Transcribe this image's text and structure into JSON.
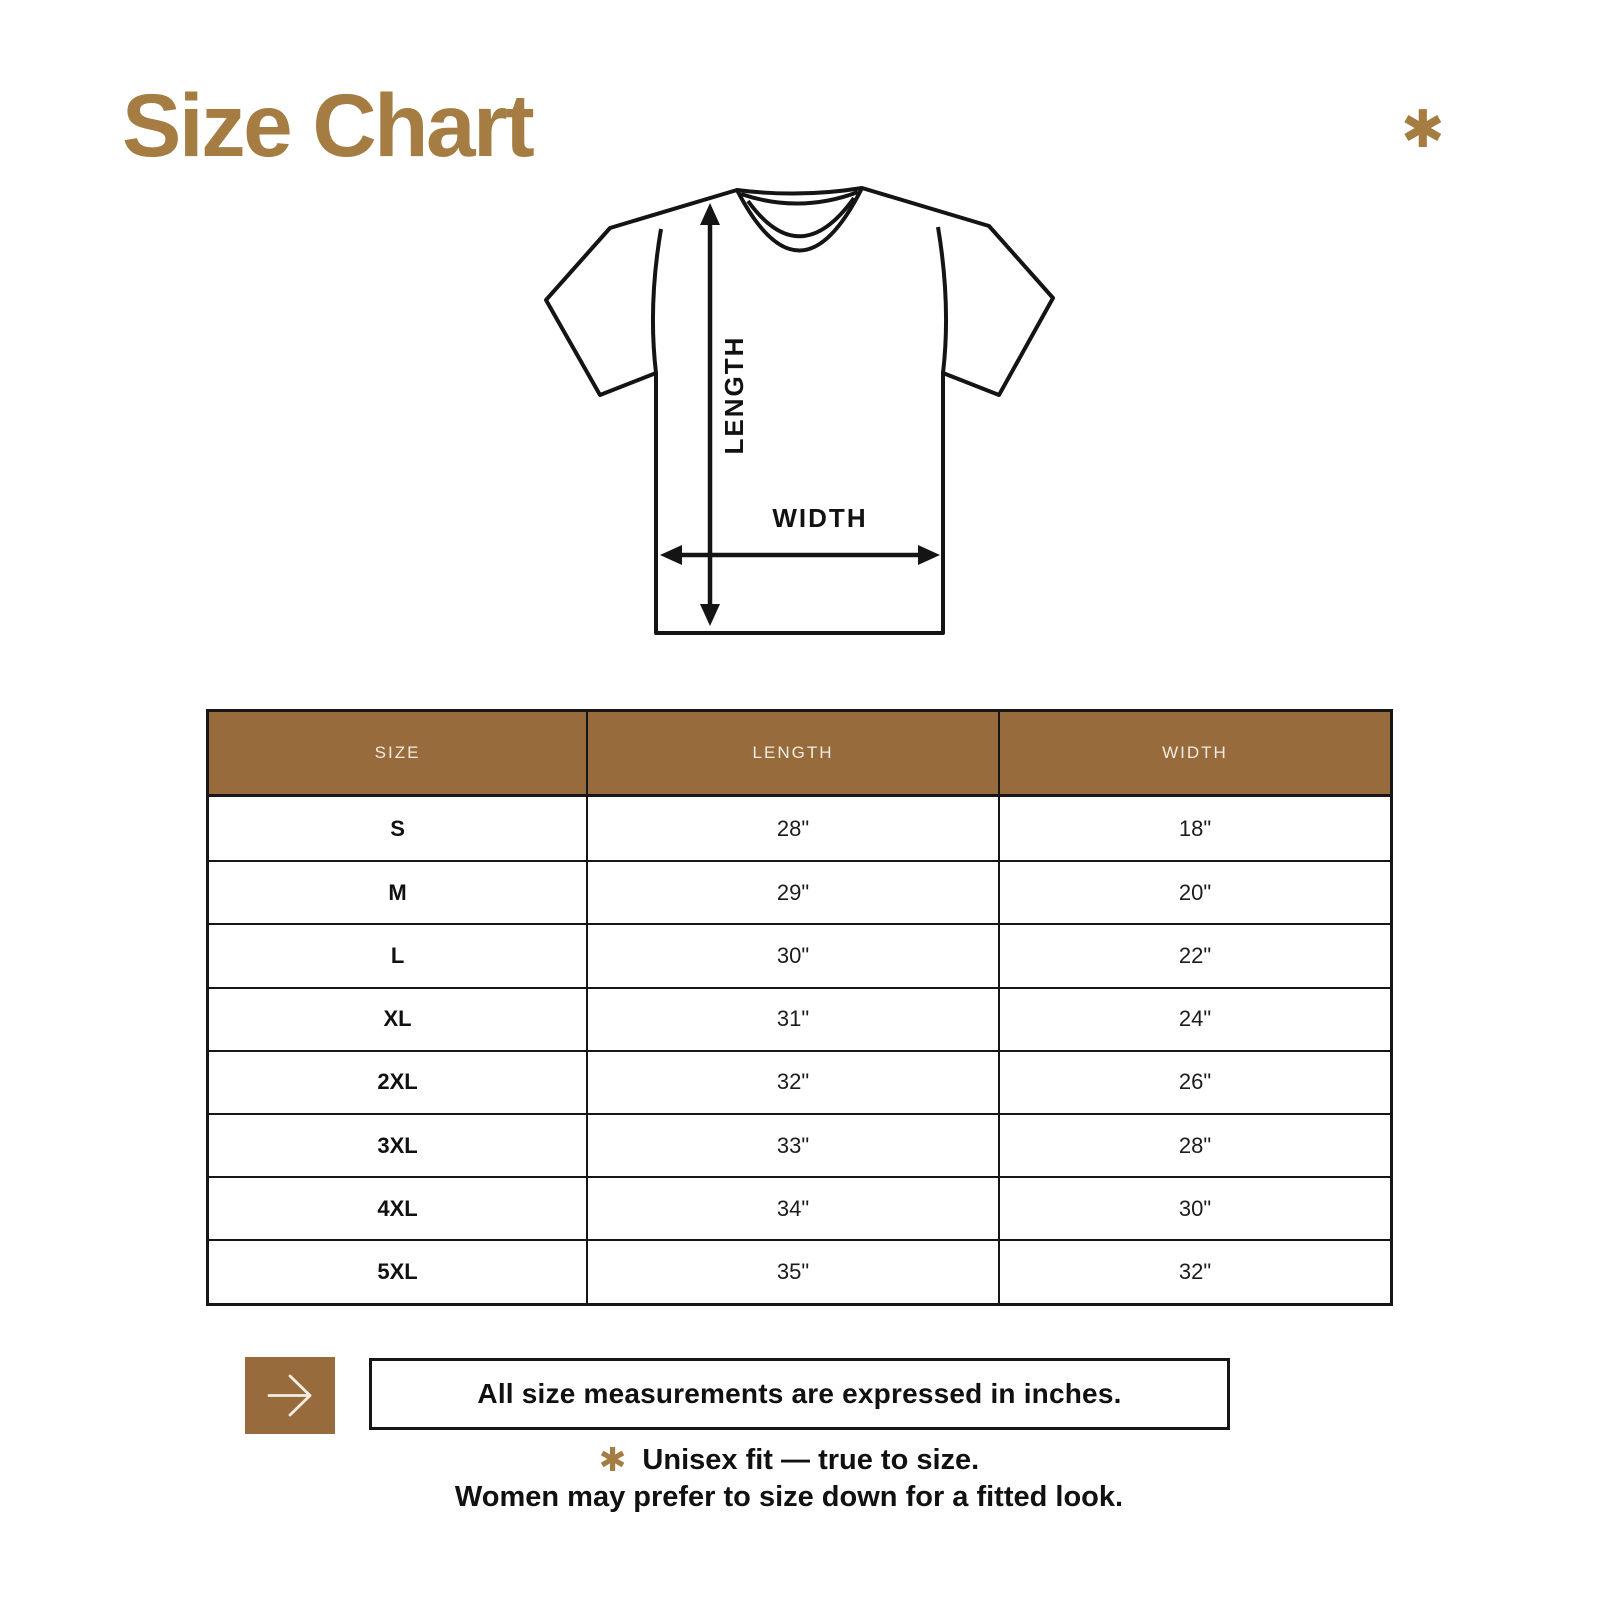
{
  "page": {
    "title": "Size Chart",
    "decor_asterisk": "✱"
  },
  "diagram": {
    "length_label": "LENGTH",
    "width_label": "WIDTH"
  },
  "table": {
    "headers": [
      "SIZE",
      "LENGTH",
      "WIDTH"
    ],
    "rows": [
      {
        "size": "S",
        "length": "28\"",
        "width": "18\""
      },
      {
        "size": "M",
        "length": "29\"",
        "width": "20\""
      },
      {
        "size": "L",
        "length": "30\"",
        "width": "22\""
      },
      {
        "size": "XL",
        "length": "31\"",
        "width": "24\""
      },
      {
        "size": "2XL",
        "length": "32\"",
        "width": "26\""
      },
      {
        "size": "3XL",
        "length": "33\"",
        "width": "28\""
      },
      {
        "size": "4XL",
        "length": "34\"",
        "width": "30\""
      },
      {
        "size": "5XL",
        "length": "35\"",
        "width": "32\""
      }
    ]
  },
  "note": {
    "arrow_icon": "arrow-right",
    "text": "All size measurements are expressed in inches."
  },
  "footer": {
    "asterisk": "✱",
    "line1": "Unisex fit — true to size.",
    "line2": "Women may prefer to size down for a fitted look."
  },
  "colors": {
    "title_brown": "#A57C42",
    "accent_brown": "#976B3B",
    "header_text": "#F2ECE2",
    "ink": "#161616",
    "background": "#FFFFFF"
  },
  "chart_data": {
    "type": "table",
    "title": "Size Chart",
    "columns": [
      "SIZE",
      "LENGTH",
      "WIDTH"
    ],
    "rows": [
      [
        "S",
        "28\"",
        "18\""
      ],
      [
        "M",
        "29\"",
        "20\""
      ],
      [
        "L",
        "30\"",
        "22\""
      ],
      [
        "XL",
        "31\"",
        "24\""
      ],
      [
        "2XL",
        "32\"",
        "26\""
      ],
      [
        "3XL",
        "33\"",
        "28\""
      ],
      [
        "4XL",
        "34\"",
        "30\""
      ],
      [
        "5XL",
        "35\"",
        "32\""
      ]
    ],
    "units_note": "All size measurements are expressed in inches."
  }
}
